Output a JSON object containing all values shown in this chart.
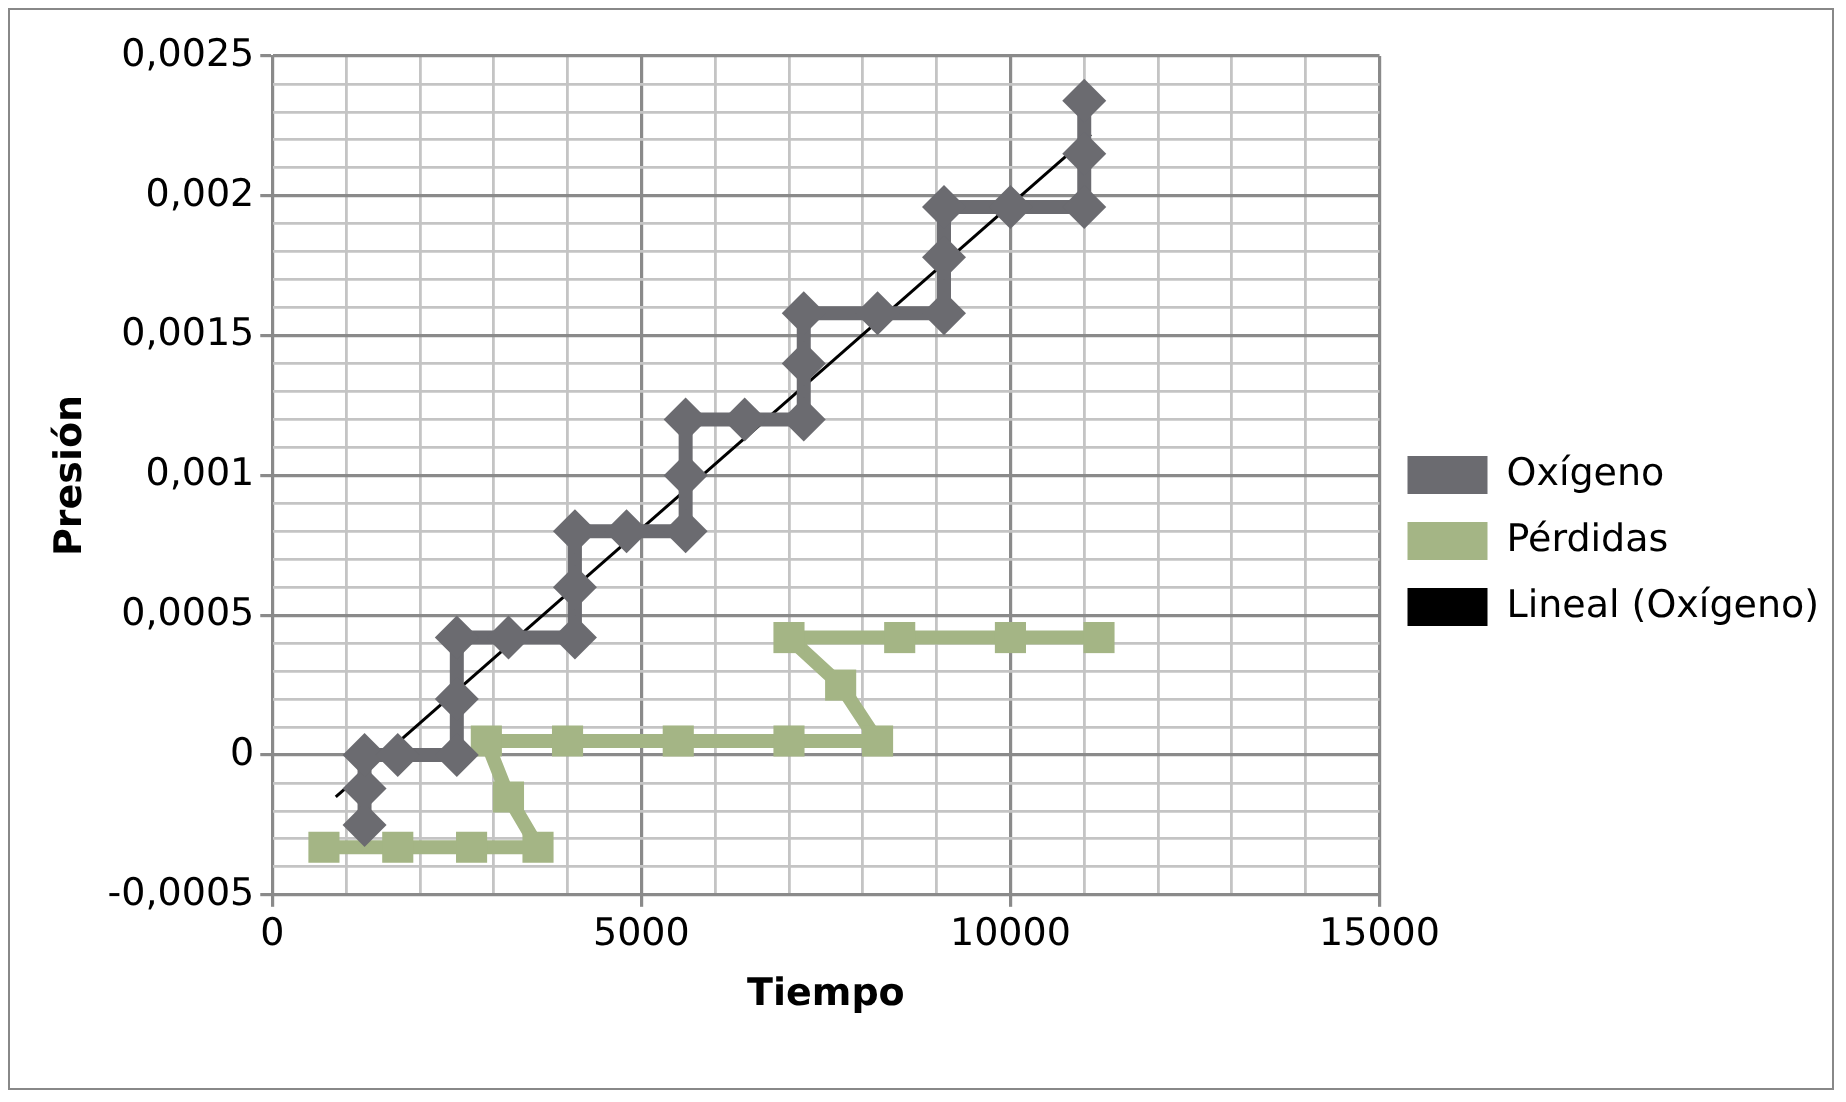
{
  "chart_data": {
    "type": "line",
    "xlabel": "Tiempo",
    "ylabel": "Presión",
    "xlim": [
      0,
      15000
    ],
    "xticks": [
      0,
      {
        "value": 1000,
        "label": null
      },
      {
        "value": 2000,
        "label": null
      },
      {
        "value": 3000,
        "label": null
      },
      {
        "value": 4000,
        "label": null
      },
      5000,
      {
        "value": 6000,
        "label": null
      },
      {
        "value": 7000,
        "label": null
      },
      {
        "value": 8000,
        "label": null
      },
      {
        "value": 9000,
        "label": null
      },
      10000,
      {
        "value": 11000,
        "label": null
      },
      {
        "value": 12000,
        "label": null
      },
      {
        "value": 13000,
        "label": null
      },
      {
        "value": 14000,
        "label": null
      },
      15000
    ],
    "ylim": [
      -0.0005,
      0.0025
    ],
    "yticks": [
      {
        "value": -0.0005,
        "label": "-0,0005"
      },
      {
        "value": -0.0004,
        "label": null
      },
      {
        "value": -0.0003,
        "label": null
      },
      {
        "value": -0.0002,
        "label": null
      },
      {
        "value": -0.0001,
        "label": null
      },
      0,
      {
        "value": 0.0001,
        "label": null
      },
      {
        "value": 0.0002,
        "label": null
      },
      {
        "value": 0.0003,
        "label": null
      },
      {
        "value": 0.0004,
        "label": null
      },
      {
        "value": 0.0005,
        "label": "0,0005"
      },
      {
        "value": 0.0006,
        "label": null
      },
      {
        "value": 0.0007,
        "label": null
      },
      {
        "value": 0.0008,
        "label": null
      },
      {
        "value": 0.0009,
        "label": null
      },
      {
        "value": 0.001,
        "label": "0,001"
      },
      {
        "value": 0.0011,
        "label": null
      },
      {
        "value": 0.0012,
        "label": null
      },
      {
        "value": 0.0013,
        "label": null
      },
      {
        "value": 0.0014,
        "label": null
      },
      {
        "value": 0.0015,
        "label": "0,0015"
      },
      {
        "value": 0.0016,
        "label": null
      },
      {
        "value": 0.0017,
        "label": null
      },
      {
        "value": 0.0018,
        "label": null
      },
      {
        "value": 0.0019,
        "label": null
      },
      {
        "value": 0.002,
        "label": "0,002"
      },
      {
        "value": 0.0021,
        "label": null
      },
      {
        "value": 0.0022,
        "label": null
      },
      {
        "value": 0.0023,
        "label": null
      },
      {
        "value": 0.0024,
        "label": null
      },
      {
        "value": 0.0025,
        "label": "0,0025"
      }
    ],
    "grid": true,
    "legend": "right",
    "line_style": "solid",
    "series": [
      {
        "name": "Oxígeno",
        "color": "#6b6b70",
        "marker": "diamond",
        "x": [
          1250,
          1250,
          1250,
          1700,
          2500,
          2500,
          2500,
          3200,
          4100,
          4100,
          4100,
          4800,
          5600,
          5600,
          5600,
          6400,
          7200,
          7200,
          7200,
          8200,
          9100,
          9100,
          9100,
          10000,
          11000,
          11000,
          11000
        ],
        "values": [
          -0.00025,
          -0.00012,
          0,
          0,
          0,
          0.0002,
          0.00042,
          0.00042,
          0.00042,
          0.0006,
          0.0008,
          0.0008,
          0.0008,
          0.001,
          0.0012,
          0.0012,
          0.0012,
          0.0014,
          0.00158,
          0.00158,
          0.00158,
          0.00178,
          0.00196,
          0.00196,
          0.00196,
          0.00215,
          0.00234
        ]
      },
      {
        "name": "Pérdidas",
        "color": "#a4b585",
        "marker": "square",
        "x": [
          700,
          1700,
          2700,
          3600,
          3200,
          2900,
          4000,
          5500,
          7000,
          8200,
          7700,
          7000,
          8500,
          10000,
          11200
        ],
        "values": [
          -0.00033,
          -0.00033,
          -0.00033,
          -0.00033,
          -0.00015,
          5e-05,
          5e-05,
          5e-05,
          5e-05,
          5e-05,
          0.00025,
          0.00042,
          0.00042,
          0.00042,
          0.00042
        ]
      },
      {
        "name": "Lineal (Oxígeno)",
        "color": "#000000",
        "marker": "none",
        "x": [
          860,
          11090
        ],
        "values": [
          -0.00015,
          0.00222
        ]
      }
    ]
  }
}
